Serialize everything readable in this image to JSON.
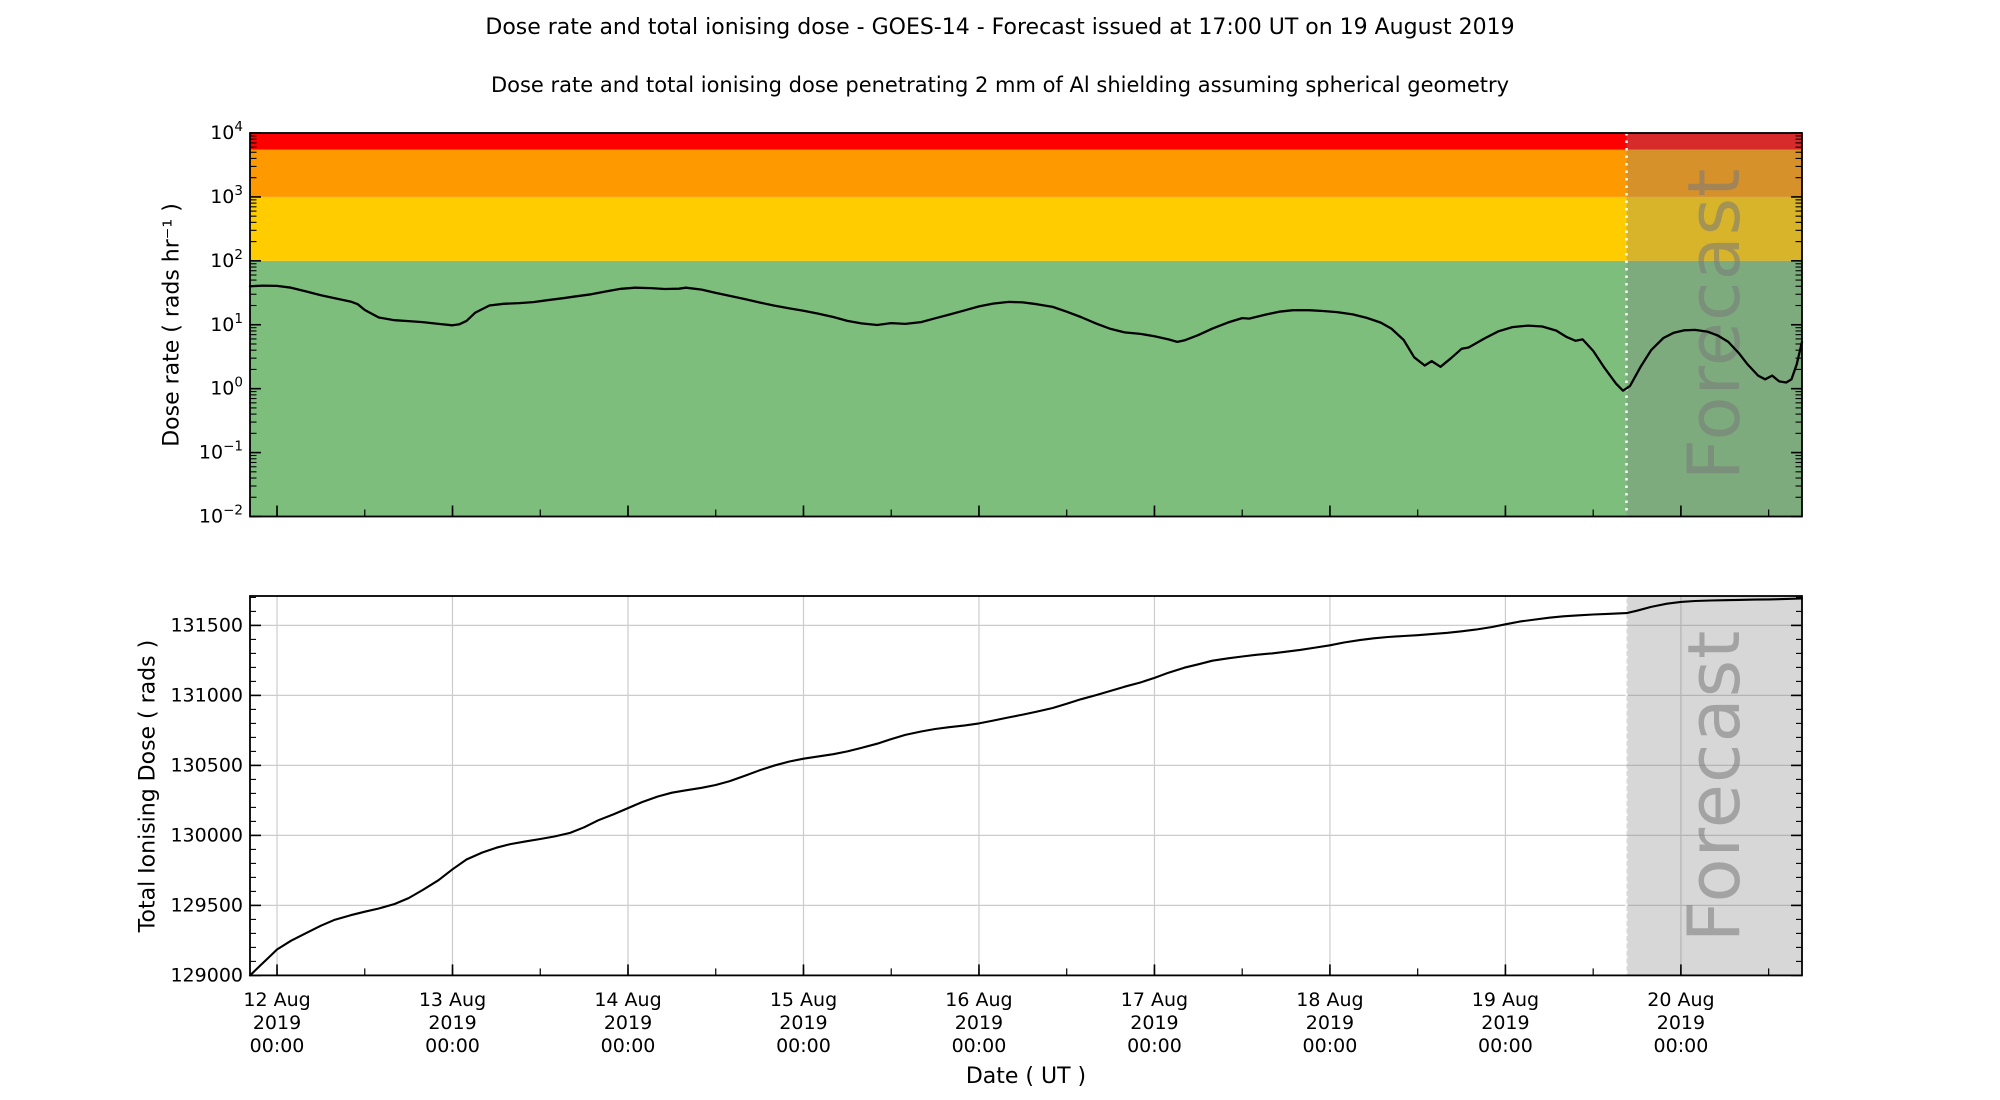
{
  "header": {
    "title": "Dose rate and total ionising dose - GOES-14 - Forecast issued at 17:00 UT on 19 August 2019",
    "subtitle": "Dose rate and total ionising dose penetrating 2 mm of Al shielding assuming spherical geometry"
  },
  "forecast": {
    "watermark": "Forecast",
    "start_day": 7.69
  },
  "x_axis": {
    "label": "Date ( UT )",
    "range_days": [
      -0.154,
      8.69
    ],
    "tick_days": [
      0,
      1,
      2,
      3,
      4,
      5,
      6,
      7,
      8
    ],
    "minor_step_days": 0.5,
    "tick_labels": [
      {
        "day": "12 Aug",
        "year": "2019",
        "time": "00:00"
      },
      {
        "day": "13 Aug",
        "year": "2019",
        "time": "00:00"
      },
      {
        "day": "14 Aug",
        "year": "2019",
        "time": "00:00"
      },
      {
        "day": "15 Aug",
        "year": "2019",
        "time": "00:00"
      },
      {
        "day": "16 Aug",
        "year": "2019",
        "time": "00:00"
      },
      {
        "day": "17 Aug",
        "year": "2019",
        "time": "00:00"
      },
      {
        "day": "18 Aug",
        "year": "2019",
        "time": "00:00"
      },
      {
        "day": "19 Aug",
        "year": "2019",
        "time": "00:00"
      },
      {
        "day": "20 Aug",
        "year": "2019",
        "time": "00:00"
      }
    ]
  },
  "colors": {
    "green": "#7DBE7D",
    "gold": "#FFCC00",
    "orange": "#FF9900",
    "red": "#FF0000",
    "overlay": "rgba(130,130,130,0.32)",
    "grid": "#cccccc",
    "curve": "#000000",
    "forecast_line": "#ffffff",
    "watermark": "#7a7a7a",
    "spine": "#000000",
    "text": "#000000"
  },
  "chart_data": [
    {
      "type": "line",
      "name": "dose_rate",
      "ylabel": "Dose rate ( rads hr⁻¹ )",
      "yscale": "log",
      "ylim": [
        0.01,
        10000
      ],
      "ytick_exponents": [
        4,
        3,
        2,
        1,
        0,
        -1,
        -2
      ],
      "bands": [
        {
          "min": 0.01,
          "max": 100,
          "color_key": "green"
        },
        {
          "min": 100,
          "max": 1000,
          "color_key": "gold"
        },
        {
          "min": 1000,
          "max": 5500,
          "color_key": "orange"
        },
        {
          "min": 5500,
          "max": 10000,
          "color_key": "red"
        }
      ],
      "series": [
        {
          "name": "GOES-14 dose rate (rads/hr), days since 12 Aug 2019 00:00 UT",
          "points": [
            [
              -0.154,
              40
            ],
            [
              -0.08,
              41
            ],
            [
              0,
              40.5
            ],
            [
              0.08,
              38
            ],
            [
              0.17,
              33
            ],
            [
              0.25,
              29
            ],
            [
              0.33,
              26
            ],
            [
              0.42,
              23
            ],
            [
              0.46,
              21
            ],
            [
              0.5,
              17
            ],
            [
              0.58,
              13
            ],
            [
              0.67,
              11.8
            ],
            [
              0.75,
              11.4
            ],
            [
              0.83,
              11
            ],
            [
              0.92,
              10.3
            ],
            [
              1.0,
              9.8
            ],
            [
              1.04,
              10.2
            ],
            [
              1.08,
              11.5
            ],
            [
              1.13,
              15.5
            ],
            [
              1.21,
              20
            ],
            [
              1.29,
              21.3
            ],
            [
              1.38,
              21.8
            ],
            [
              1.46,
              22.6
            ],
            [
              1.54,
              24.2
            ],
            [
              1.63,
              26
            ],
            [
              1.71,
              28
            ],
            [
              1.79,
              30
            ],
            [
              1.88,
              33.5
            ],
            [
              1.96,
              36.5
            ],
            [
              2.04,
              38
            ],
            [
              2.13,
              37.5
            ],
            [
              2.21,
              36.2
            ],
            [
              2.29,
              36.6
            ],
            [
              2.33,
              38
            ],
            [
              2.42,
              35.5
            ],
            [
              2.5,
              31.5
            ],
            [
              2.58,
              28.3
            ],
            [
              2.67,
              25
            ],
            [
              2.75,
              22.3
            ],
            [
              2.83,
              20
            ],
            [
              2.92,
              18
            ],
            [
              3.0,
              16.5
            ],
            [
              3.08,
              15
            ],
            [
              3.17,
              13.2
            ],
            [
              3.25,
              11.5
            ],
            [
              3.33,
              10.5
            ],
            [
              3.42,
              9.9
            ],
            [
              3.5,
              10.6
            ],
            [
              3.58,
              10.3
            ],
            [
              3.67,
              11
            ],
            [
              3.75,
              12.6
            ],
            [
              3.83,
              14.4
            ],
            [
              3.92,
              16.8
            ],
            [
              4.0,
              19.4
            ],
            [
              4.08,
              21.4
            ],
            [
              4.17,
              22.8
            ],
            [
              4.25,
              22.4
            ],
            [
              4.33,
              21
            ],
            [
              4.42,
              19
            ],
            [
              4.5,
              16
            ],
            [
              4.58,
              13.2
            ],
            [
              4.67,
              10.4
            ],
            [
              4.75,
              8.6
            ],
            [
              4.83,
              7.6
            ],
            [
              4.92,
              7.2
            ],
            [
              5.0,
              6.6
            ],
            [
              5.08,
              5.9
            ],
            [
              5.13,
              5.4
            ],
            [
              5.17,
              5.7
            ],
            [
              5.25,
              6.9
            ],
            [
              5.33,
              8.7
            ],
            [
              5.42,
              10.9
            ],
            [
              5.5,
              12.7
            ],
            [
              5.54,
              12.5
            ],
            [
              5.63,
              14.3
            ],
            [
              5.71,
              16
            ],
            [
              5.79,
              16.9
            ],
            [
              5.88,
              16.9
            ],
            [
              5.96,
              16.4
            ],
            [
              6.04,
              15.8
            ],
            [
              6.13,
              14.5
            ],
            [
              6.21,
              12.8
            ],
            [
              6.29,
              10.8
            ],
            [
              6.35,
              8.7
            ],
            [
              6.42,
              5.8
            ],
            [
              6.48,
              3.1
            ],
            [
              6.54,
              2.3
            ],
            [
              6.58,
              2.7
            ],
            [
              6.63,
              2.2
            ],
            [
              6.69,
              3.0
            ],
            [
              6.75,
              4.2
            ],
            [
              6.79,
              4.4
            ],
            [
              6.88,
              6.1
            ],
            [
              6.96,
              7.9
            ],
            [
              7.04,
              9.2
            ],
            [
              7.13,
              9.7
            ],
            [
              7.21,
              9.4
            ],
            [
              7.29,
              8.1
            ],
            [
              7.35,
              6.4
            ],
            [
              7.4,
              5.6
            ],
            [
              7.44,
              5.9
            ],
            [
              7.5,
              3.9
            ],
            [
              7.56,
              2.2
            ],
            [
              7.63,
              1.2
            ],
            [
              7.67,
              0.93
            ],
            [
              7.71,
              1.1
            ],
            [
              7.77,
              2.2
            ],
            [
              7.83,
              4.0
            ],
            [
              7.9,
              6.2
            ],
            [
              7.96,
              7.5
            ],
            [
              8.02,
              8.2
            ],
            [
              8.08,
              8.3
            ],
            [
              8.15,
              7.8
            ],
            [
              8.21,
              6.8
            ],
            [
              8.27,
              5.4
            ],
            [
              8.33,
              3.6
            ],
            [
              8.38,
              2.4
            ],
            [
              8.44,
              1.6
            ],
            [
              8.48,
              1.4
            ],
            [
              8.52,
              1.6
            ],
            [
              8.56,
              1.3
            ],
            [
              8.6,
              1.25
            ],
            [
              8.63,
              1.4
            ],
            [
              8.66,
              2.4
            ],
            [
              8.69,
              5.4
            ]
          ]
        }
      ]
    },
    {
      "type": "line",
      "name": "total_ionising_dose",
      "ylabel": "Total Ionising Dose ( rads )",
      "yscale": "linear",
      "ylim": [
        129000,
        131710
      ],
      "yticks": [
        129000,
        129500,
        130000,
        130500,
        131000,
        131500
      ],
      "ytick_minor_step": 100,
      "series": [
        {
          "name": "GOES-14 total ionising dose (rads), days since 12 Aug 2019 00:00 UT",
          "points": [
            [
              -0.154,
              129000
            ],
            [
              -0.1,
              129065
            ],
            [
              -0.05,
              129125
            ],
            [
              0,
              129185
            ],
            [
              0.08,
              129248
            ],
            [
              0.17,
              129305
            ],
            [
              0.25,
              129355
            ],
            [
              0.33,
              129398
            ],
            [
              0.42,
              129430
            ],
            [
              0.5,
              129455
            ],
            [
              0.58,
              129478
            ],
            [
              0.67,
              129510
            ],
            [
              0.75,
              129552
            ],
            [
              0.83,
              129610
            ],
            [
              0.92,
              129680
            ],
            [
              1.0,
              129758
            ],
            [
              1.08,
              129828
            ],
            [
              1.17,
              129878
            ],
            [
              1.25,
              129912
            ],
            [
              1.33,
              129938
            ],
            [
              1.42,
              129958
            ],
            [
              1.5,
              129974
            ],
            [
              1.58,
              129992
            ],
            [
              1.67,
              130018
            ],
            [
              1.75,
              130058
            ],
            [
              1.83,
              130108
            ],
            [
              1.92,
              130152
            ],
            [
              2.0,
              130195
            ],
            [
              2.08,
              130238
            ],
            [
              2.17,
              130278
            ],
            [
              2.25,
              130305
            ],
            [
              2.33,
              130322
            ],
            [
              2.42,
              130340
            ],
            [
              2.5,
              130360
            ],
            [
              2.58,
              130388
            ],
            [
              2.67,
              130428
            ],
            [
              2.75,
              130465
            ],
            [
              2.83,
              130498
            ],
            [
              2.92,
              130528
            ],
            [
              3.0,
              130548
            ],
            [
              3.08,
              130563
            ],
            [
              3.17,
              130580
            ],
            [
              3.25,
              130600
            ],
            [
              3.33,
              130625
            ],
            [
              3.42,
              130655
            ],
            [
              3.5,
              130688
            ],
            [
              3.58,
              130718
            ],
            [
              3.67,
              130742
            ],
            [
              3.75,
              130760
            ],
            [
              3.83,
              130773
            ],
            [
              3.92,
              130786
            ],
            [
              4.0,
              130800
            ],
            [
              4.08,
              130820
            ],
            [
              4.17,
              130843
            ],
            [
              4.25,
              130863
            ],
            [
              4.33,
              130884
            ],
            [
              4.42,
              130910
            ],
            [
              4.5,
              130940
            ],
            [
              4.58,
              130972
            ],
            [
              4.67,
              131003
            ],
            [
              4.75,
              131032
            ],
            [
              4.83,
              131062
            ],
            [
              4.92,
              131092
            ],
            [
              5.0,
              131125
            ],
            [
              5.08,
              131162
            ],
            [
              5.17,
              131198
            ],
            [
              5.25,
              131222
            ],
            [
              5.33,
              131248
            ],
            [
              5.42,
              131265
            ],
            [
              5.5,
              131278
            ],
            [
              5.58,
              131290
            ],
            [
              5.67,
              131300
            ],
            [
              5.75,
              131312
            ],
            [
              5.83,
              131325
            ],
            [
              5.92,
              131342
            ],
            [
              6.0,
              131358
            ],
            [
              6.08,
              131378
            ],
            [
              6.17,
              131395
            ],
            [
              6.25,
              131408
            ],
            [
              6.33,
              131417
            ],
            [
              6.42,
              131424
            ],
            [
              6.5,
              131430
            ],
            [
              6.58,
              131438
            ],
            [
              6.67,
              131447
            ],
            [
              6.75,
              131458
            ],
            [
              6.83,
              131470
            ],
            [
              6.92,
              131488
            ],
            [
              7.0,
              131508
            ],
            [
              7.08,
              131527
            ],
            [
              7.17,
              131542
            ],
            [
              7.25,
              131555
            ],
            [
              7.33,
              131565
            ],
            [
              7.42,
              131572
            ],
            [
              7.5,
              131578
            ],
            [
              7.58,
              131582
            ],
            [
              7.69,
              131588
            ],
            [
              7.75,
              131605
            ],
            [
              7.83,
              131632
            ],
            [
              7.92,
              131655
            ],
            [
              8.0,
              131668
            ],
            [
              8.08,
              131674
            ],
            [
              8.17,
              131678
            ],
            [
              8.25,
              131680
            ],
            [
              8.33,
              131682
            ],
            [
              8.42,
              131684
            ],
            [
              8.5,
              131686
            ],
            [
              8.58,
              131688
            ],
            [
              8.69,
              131692
            ]
          ]
        }
      ]
    }
  ]
}
